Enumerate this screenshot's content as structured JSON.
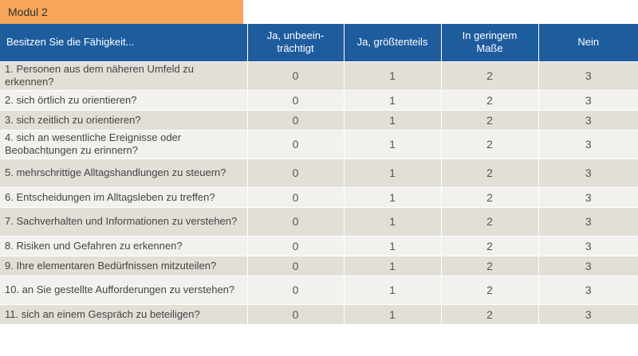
{
  "tab_title": "Modul 2",
  "headers": [
    "Besitzen Sie die Fähigkeit...",
    "Ja, unbeein-\nträchtigt",
    "Ja, größtenteils",
    "In geringem\nMaße",
    "Nein"
  ],
  "rows": [
    {
      "question": "1. Personen aus dem näheren Umfeld zu erkennen?",
      "values": [
        "0",
        "1",
        "2",
        "3"
      ]
    },
    {
      "question": "2. sich örtlich zu orientieren?",
      "values": [
        "0",
        "1",
        "2",
        "3"
      ]
    },
    {
      "question": "3. sich zeitlich zu orientieren?",
      "values": [
        "0",
        "1",
        "2",
        "3"
      ]
    },
    {
      "question": "4. sich an wesentliche Ereignisse oder Beobachtungen zu erinnern?",
      "values": [
        "0",
        "1",
        "2",
        "3"
      ]
    },
    {
      "question": "5. mehrschrittige Alltagshandlungen zu steuern?",
      "values": [
        "0",
        "1",
        "2",
        "3"
      ]
    },
    {
      "question": "6. Entscheidungen im Alltagsleben zu treffen?",
      "values": [
        "0",
        "1",
        "2",
        "3"
      ]
    },
    {
      "question": "7. Sachverhalten und Informationen zu verstehen?",
      "values": [
        "0",
        "1",
        "2",
        "3"
      ]
    },
    {
      "question": "8. Risiken und Gefahren zu erkennen?",
      "values": [
        "0",
        "1",
        "2",
        "3"
      ]
    },
    {
      "question": "9. Ihre elementaren Bedürfnissen mitzuteilen?",
      "values": [
        "0",
        "1",
        "2",
        "3"
      ]
    },
    {
      "question": "10. an Sie gestellte Aufforderungen zu verstehen?",
      "values": [
        "0",
        "1",
        "2",
        "3"
      ]
    },
    {
      "question": "11. sich an einem Gespräch zu beteiligen?",
      "values": [
        "0",
        "1",
        "2",
        "3"
      ]
    }
  ]
}
